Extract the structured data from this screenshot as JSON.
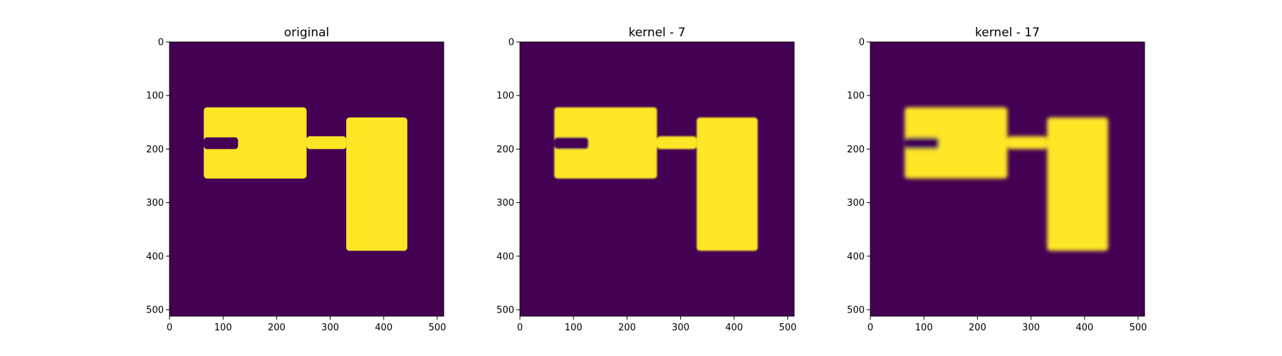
{
  "chart_data": [
    {
      "type": "heatmap",
      "title": "original",
      "xlabel": "",
      "ylabel": "",
      "image_size": [
        512,
        512
      ],
      "xlim": [
        0,
        512
      ],
      "ylim": [
        512,
        0
      ],
      "xticks": [
        0,
        100,
        200,
        300,
        400,
        500
      ],
      "yticks": [
        0,
        100,
        200,
        300,
        400,
        500
      ],
      "colormap": "viridis",
      "background_value": 0,
      "foreground_value": 1,
      "edge_blur_width": 0,
      "shapes": [
        {
          "name": "left block",
          "x": [
            64,
            256
          ],
          "y": [
            122,
            255
          ]
        },
        {
          "name": "left notch",
          "x": [
            64,
            128
          ],
          "y": [
            178,
            200
          ],
          "value": 0
        },
        {
          "name": "connector bar",
          "x": [
            256,
            330
          ],
          "y": [
            176,
            200
          ]
        },
        {
          "name": "right block",
          "x": [
            330,
            444
          ],
          "y": [
            141,
            390
          ]
        }
      ]
    },
    {
      "type": "heatmap",
      "title": "kernel - 7",
      "xlabel": "",
      "ylabel": "",
      "image_size": [
        512,
        512
      ],
      "xlim": [
        0,
        512
      ],
      "ylim": [
        512,
        0
      ],
      "xticks": [
        0,
        100,
        200,
        300,
        400,
        500
      ],
      "yticks": [
        0,
        100,
        200,
        300,
        400,
        500
      ],
      "colormap": "viridis",
      "background_value": 0,
      "foreground_value": 1,
      "edge_blur_width": 3,
      "shapes": [
        {
          "name": "left block",
          "x": [
            64,
            256
          ],
          "y": [
            122,
            255
          ]
        },
        {
          "name": "left notch",
          "x": [
            64,
            128
          ],
          "y": [
            178,
            200
          ],
          "value": 0
        },
        {
          "name": "connector bar",
          "x": [
            256,
            330
          ],
          "y": [
            176,
            200
          ]
        },
        {
          "name": "right block",
          "x": [
            330,
            444
          ],
          "y": [
            141,
            390
          ]
        }
      ]
    },
    {
      "type": "heatmap",
      "title": "kernel - 17",
      "xlabel": "",
      "ylabel": "",
      "image_size": [
        512,
        512
      ],
      "xlim": [
        0,
        512
      ],
      "ylim": [
        512,
        0
      ],
      "xticks": [
        0,
        100,
        200,
        300,
        400,
        500
      ],
      "yticks": [
        0,
        100,
        200,
        300,
        400,
        500
      ],
      "colormap": "viridis",
      "background_value": 0,
      "foreground_value": 1,
      "edge_blur_width": 8,
      "shapes": [
        {
          "name": "left block",
          "x": [
            64,
            256
          ],
          "y": [
            122,
            255
          ]
        },
        {
          "name": "left notch",
          "x": [
            64,
            128
          ],
          "y": [
            178,
            200
          ],
          "value": 0
        },
        {
          "name": "connector bar",
          "x": [
            256,
            330
          ],
          "y": [
            176,
            200
          ]
        },
        {
          "name": "right block",
          "x": [
            330,
            444
          ],
          "y": [
            141,
            390
          ]
        }
      ]
    }
  ],
  "colors": {
    "background": "#440154",
    "foreground": "#fde725",
    "blur_edge": "#21918c"
  }
}
